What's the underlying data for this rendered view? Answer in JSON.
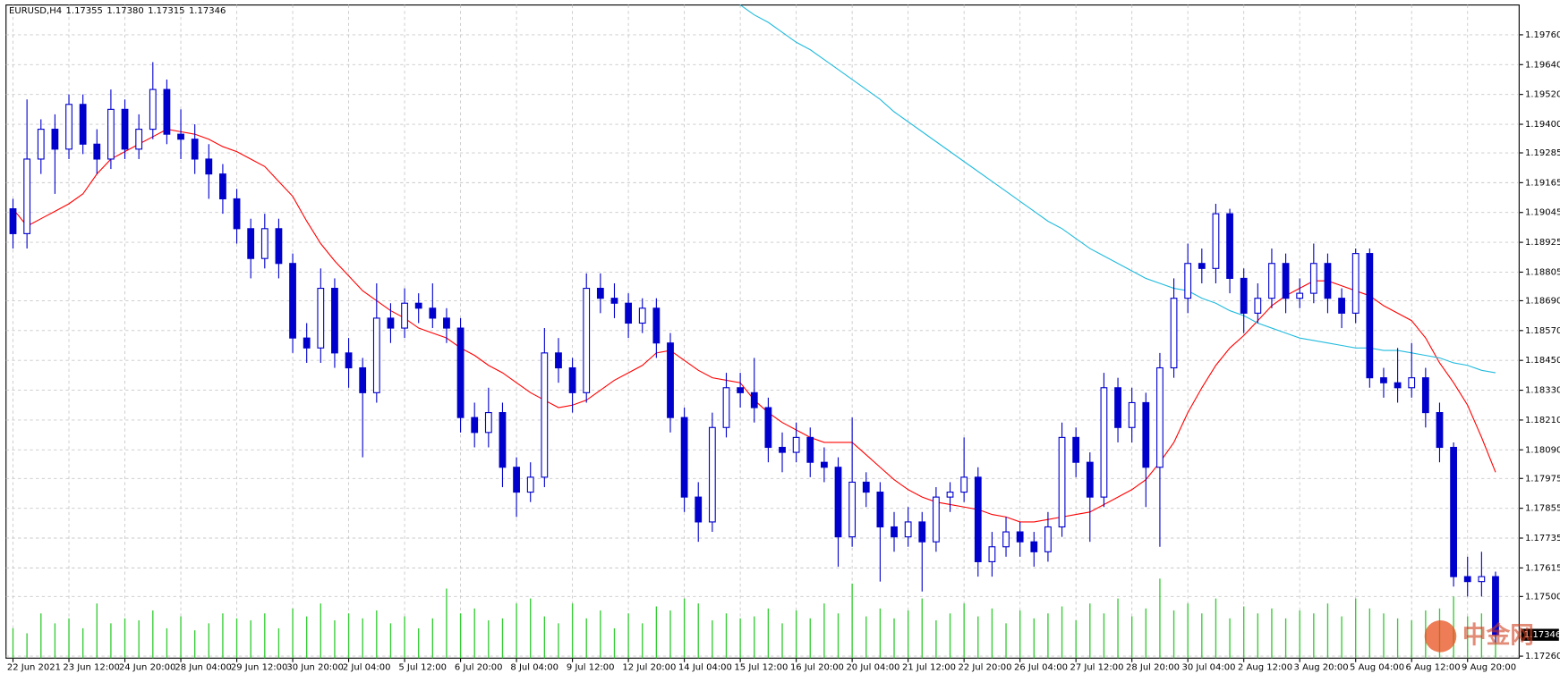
{
  "chart_data": {
    "type": "candlestick",
    "symbol": "EURUSD,H4",
    "ohlc_labels": [
      "1.17355",
      "1.17380",
      "1.17315",
      "1.17346"
    ],
    "up_color": "#ffffff",
    "down_color": "#0000cd",
    "outline_color": "#0000cd",
    "grid": true,
    "ylim": [
      1.17252,
      1.1988
    ],
    "yticks": [
      {
        "value": 1.1976,
        "label": "1.19760"
      },
      {
        "value": 1.1964,
        "label": "1.19640"
      },
      {
        "value": 1.1952,
        "label": "1.19520"
      },
      {
        "value": 1.194,
        "label": "1.19400"
      },
      {
        "value": 1.19285,
        "label": "1.19285"
      },
      {
        "value": 1.19165,
        "label": "1.19165"
      },
      {
        "value": 1.19045,
        "label": "1.19045"
      },
      {
        "value": 1.18925,
        "label": "1.18925"
      },
      {
        "value": 1.18805,
        "label": "1.18805"
      },
      {
        "value": 1.1869,
        "label": "1.18690"
      },
      {
        "value": 1.1857,
        "label": "1.18570"
      },
      {
        "value": 1.1845,
        "label": "1.18450"
      },
      {
        "value": 1.1833,
        "label": "1.18330"
      },
      {
        "value": 1.1821,
        "label": "1.18210"
      },
      {
        "value": 1.1809,
        "label": "1.18090"
      },
      {
        "value": 1.17975,
        "label": "1.17975"
      },
      {
        "value": 1.17855,
        "label": "1.17855"
      },
      {
        "value": 1.17735,
        "label": "1.17735"
      },
      {
        "value": 1.17615,
        "label": "1.17615"
      },
      {
        "value": 1.175,
        "label": "1.17500"
      },
      {
        "value": 1.1726,
        "label": "1.17260"
      }
    ],
    "xticks": [
      {
        "value": 0,
        "label": "22 Jun 2021"
      },
      {
        "value": 4,
        "label": "23 Jun 12:00"
      },
      {
        "value": 8,
        "label": "24 Jun 20:00"
      },
      {
        "value": 12,
        "label": "28 Jun 04:00"
      },
      {
        "value": 16,
        "label": "29 Jun 12:00"
      },
      {
        "value": 20,
        "label": "30 Jun 20:00"
      },
      {
        "value": 24,
        "label": "2 Jul 04:00"
      },
      {
        "value": 28,
        "label": "5 Jul 12:00"
      },
      {
        "value": 32,
        "label": "6 Jul 20:00"
      },
      {
        "value": 36,
        "label": "8 Jul 04:00"
      },
      {
        "value": 40,
        "label": "9 Jul 12:00"
      },
      {
        "value": 44,
        "label": "12 Jul 20:00"
      },
      {
        "value": 48,
        "label": "14 Jul 04:00"
      },
      {
        "value": 52,
        "label": "15 Jul 12:00"
      },
      {
        "value": 56,
        "label": "16 Jul 20:00"
      },
      {
        "value": 60,
        "label": "20 Jul 04:00"
      },
      {
        "value": 64,
        "label": "21 Jul 12:00"
      },
      {
        "value": 68,
        "label": "22 Jul 20:00"
      },
      {
        "value": 72,
        "label": "26 Jul 04:00"
      },
      {
        "value": 76,
        "label": "27 Jul 12:00"
      },
      {
        "value": 80,
        "label": "28 Jul 20:00"
      },
      {
        "value": 84,
        "label": "30 Jul 04:00"
      },
      {
        "value": 88,
        "label": "2 Aug 12:00"
      },
      {
        "value": 92,
        "label": "3 Aug 20:00"
      },
      {
        "value": 96,
        "label": "5 Aug 04:00"
      },
      {
        "value": 100,
        "label": "6 Aug 12:00"
      },
      {
        "value": 104,
        "label": "9 Aug 20:00"
      }
    ],
    "open": [
      1.1906,
      1.1896,
      1.1926,
      1.1938,
      1.193,
      1.1948,
      1.1932,
      1.1926,
      1.1946,
      1.193,
      1.1938,
      1.1954,
      1.1936,
      1.1934,
      1.1926,
      1.192,
      1.191,
      1.1898,
      1.1886,
      1.1898,
      1.1884,
      1.1854,
      1.185,
      1.1874,
      1.1848,
      1.1842,
      1.1832,
      1.1862,
      1.1858,
      1.1868,
      1.1866,
      1.1862,
      1.1858,
      1.1822,
      1.1816,
      1.1824,
      1.1802,
      1.1792,
      1.1798,
      1.1848,
      1.1842,
      1.1832,
      1.1874,
      1.187,
      1.1868,
      1.186,
      1.1866,
      1.1852,
      1.1822,
      1.179,
      1.178,
      1.1818,
      1.1834,
      1.1832,
      1.1826,
      1.181,
      1.1808,
      1.1814,
      1.1804,
      1.1802,
      1.1774,
      1.1796,
      1.1792,
      1.1778,
      1.1774,
      1.178,
      1.1772,
      1.179,
      1.1792,
      1.1798,
      1.1764,
      1.177,
      1.1776,
      1.1772,
      1.1768,
      1.1778,
      1.1814,
      1.1804,
      1.179,
      1.1834,
      1.1818,
      1.1828,
      1.1802,
      1.1842,
      1.187,
      1.1884,
      1.1882,
      1.1904,
      1.1878,
      1.1864,
      1.187,
      1.1884,
      1.187,
      1.1872,
      1.1884,
      1.187,
      1.1864,
      1.1888,
      1.1838,
      1.1836,
      1.1834,
      1.1838,
      1.1824,
      1.181,
      1.1758,
      1.1756,
      1.1758
    ],
    "high": [
      1.191,
      1.195,
      1.1942,
      1.1944,
      1.1952,
      1.1952,
      1.1938,
      1.1954,
      1.195,
      1.1944,
      1.1965,
      1.1958,
      1.1946,
      1.194,
      1.1932,
      1.1924,
      1.1914,
      1.1902,
      1.1904,
      1.1902,
      1.1888,
      1.186,
      1.1882,
      1.1878,
      1.1854,
      1.1846,
      1.1876,
      1.1868,
      1.1874,
      1.1872,
      1.1876,
      1.1866,
      1.1862,
      1.1828,
      1.1834,
      1.1828,
      1.1806,
      1.1804,
      1.1858,
      1.1854,
      1.1846,
      1.188,
      1.188,
      1.1876,
      1.1872,
      1.187,
      1.187,
      1.1856,
      1.1826,
      1.1796,
      1.1824,
      1.184,
      1.184,
      1.1846,
      1.183,
      1.1816,
      1.182,
      1.1818,
      1.181,
      1.1806,
      1.1822,
      1.18,
      1.1796,
      1.1784,
      1.1786,
      1.1784,
      1.1794,
      1.1796,
      1.1814,
      1.1802,
      1.1776,
      1.1782,
      1.178,
      1.1776,
      1.1784,
      1.182,
      1.1818,
      1.1808,
      1.184,
      1.1838,
      1.1834,
      1.1832,
      1.1848,
      1.1878,
      1.1892,
      1.189,
      1.1908,
      1.1906,
      1.1882,
      1.1876,
      1.189,
      1.1888,
      1.1878,
      1.1892,
      1.1888,
      1.1874,
      1.189,
      1.189,
      1.1842,
      1.185,
      1.1852,
      1.1842,
      1.1828,
      1.1812,
      1.1766,
      1.1768,
      1.176
    ],
    "low": [
      1.189,
      1.189,
      1.192,
      1.1912,
      1.1926,
      1.1928,
      1.192,
      1.1922,
      1.1926,
      1.1926,
      1.1934,
      1.1932,
      1.1926,
      1.192,
      1.191,
      1.1904,
      1.1892,
      1.1878,
      1.1882,
      1.1878,
      1.1848,
      1.1844,
      1.1844,
      1.1842,
      1.1834,
      1.1806,
      1.1828,
      1.1852,
      1.1854,
      1.186,
      1.1858,
      1.1852,
      1.1816,
      1.181,
      1.181,
      1.1794,
      1.1782,
      1.1788,
      1.1794,
      1.1836,
      1.1824,
      1.1828,
      1.1864,
      1.1862,
      1.1854,
      1.1856,
      1.1846,
      1.1816,
      1.1784,
      1.1772,
      1.1776,
      1.1814,
      1.1826,
      1.182,
      1.1804,
      1.18,
      1.1804,
      1.1798,
      1.1796,
      1.1762,
      1.177,
      1.1786,
      1.1756,
      1.1768,
      1.177,
      1.1752,
      1.1768,
      1.1784,
      1.1788,
      1.1758,
      1.1758,
      1.1766,
      1.1766,
      1.1762,
      1.1764,
      1.1774,
      1.1798,
      1.1772,
      1.1786,
      1.1812,
      1.1812,
      1.1786,
      1.177,
      1.1838,
      1.1864,
      1.1876,
      1.1876,
      1.1872,
      1.1856,
      1.186,
      1.1866,
      1.1864,
      1.1866,
      1.1868,
      1.1864,
      1.1858,
      1.186,
      1.1834,
      1.183,
      1.1828,
      1.183,
      1.1818,
      1.1804,
      1.1754,
      1.175,
      1.175,
      1.17315
    ],
    "close": [
      1.1896,
      1.1926,
      1.1938,
      1.193,
      1.1948,
      1.1932,
      1.1926,
      1.1946,
      1.193,
      1.1938,
      1.1954,
      1.1936,
      1.1934,
      1.1926,
      1.192,
      1.191,
      1.1898,
      1.1886,
      1.1898,
      1.1884,
      1.1854,
      1.185,
      1.1874,
      1.1848,
      1.1842,
      1.1832,
      1.1862,
      1.1858,
      1.1868,
      1.1866,
      1.1862,
      1.1858,
      1.1822,
      1.1816,
      1.1824,
      1.1802,
      1.1792,
      1.1798,
      1.1848,
      1.1842,
      1.1832,
      1.1874,
      1.187,
      1.1868,
      1.186,
      1.1866,
      1.1852,
      1.1822,
      1.179,
      1.178,
      1.1818,
      1.1834,
      1.1832,
      1.1826,
      1.181,
      1.1808,
      1.1814,
      1.1804,
      1.1802,
      1.1774,
      1.1796,
      1.1792,
      1.1778,
      1.1774,
      1.178,
      1.1772,
      1.179,
      1.1792,
      1.1798,
      1.1764,
      1.177,
      1.1776,
      1.1772,
      1.1768,
      1.1778,
      1.1814,
      1.1804,
      1.179,
      1.1834,
      1.1818,
      1.1828,
      1.1802,
      1.1842,
      1.187,
      1.1884,
      1.1882,
      1.1904,
      1.1878,
      1.1864,
      1.187,
      1.1884,
      1.187,
      1.1872,
      1.1884,
      1.187,
      1.1864,
      1.1888,
      1.1838,
      1.1836,
      1.1834,
      1.1838,
      1.1824,
      1.181,
      1.1758,
      1.1756,
      1.1758,
      1.17346
    ],
    "overlays": [
      {
        "color": "#ff0000",
        "values": [
          1.1906,
          1.1899,
          1.1902,
          1.1905,
          1.1908,
          1.1912,
          1.192,
          1.1926,
          1.1929,
          1.1932,
          1.1935,
          1.1938,
          1.1937,
          1.1936,
          1.1934,
          1.1931,
          1.1929,
          1.1926,
          1.1923,
          1.1917,
          1.1911,
          1.1901,
          1.1892,
          1.1885,
          1.1879,
          1.1873,
          1.1869,
          1.1865,
          1.1862,
          1.1858,
          1.1856,
          1.1854,
          1.185,
          1.1847,
          1.1843,
          1.184,
          1.1836,
          1.1832,
          1.1829,
          1.1826,
          1.1827,
          1.1829,
          1.1833,
          1.1837,
          1.184,
          1.1843,
          1.1848,
          1.1849,
          1.1845,
          1.1841,
          1.1838,
          1.1837,
          1.1836,
          1.1829,
          1.1824,
          1.182,
          1.1817,
          1.1814,
          1.1812,
          1.1812,
          1.1812,
          1.1807,
          1.1802,
          1.1797,
          1.1793,
          1.179,
          1.1788,
          1.1787,
          1.1786,
          1.1785,
          1.1783,
          1.1782,
          1.178,
          1.178,
          1.1781,
          1.1782,
          1.1783,
          1.1784,
          1.1787,
          1.179,
          1.1793,
          1.1797,
          1.1804,
          1.1812,
          1.1824,
          1.1834,
          1.1843,
          1.185,
          1.1855,
          1.1861,
          1.1867,
          1.1871,
          1.1874,
          1.1877,
          1.1877,
          1.1875,
          1.1873,
          1.1871,
          1.1867,
          1.1864,
          1.1861,
          1.1854,
          1.1844,
          1.1836,
          1.1827,
          1.1814,
          1.18
        ]
      },
      {
        "color": "#22bbdd",
        "values": [
          null,
          null,
          null,
          null,
          null,
          null,
          null,
          null,
          null,
          null,
          null,
          null,
          null,
          null,
          null,
          null,
          null,
          null,
          null,
          null,
          null,
          null,
          null,
          null,
          null,
          null,
          null,
          null,
          null,
          null,
          null,
          null,
          null,
          null,
          null,
          null,
          null,
          null,
          null,
          null,
          null,
          null,
          null,
          null,
          null,
          null,
          null,
          null,
          null,
          null,
          null,
          null,
          1.1988,
          1.1984,
          1.1981,
          1.1977,
          1.1973,
          1.197,
          1.1966,
          1.1962,
          1.1958,
          1.1954,
          1.195,
          1.1945,
          1.1941,
          1.1937,
          1.1933,
          1.1929,
          1.1925,
          1.1921,
          1.1917,
          1.1913,
          1.1909,
          1.1905,
          1.1901,
          1.1898,
          1.1894,
          1.189,
          1.1887,
          1.1884,
          1.1881,
          1.1878,
          1.1876,
          1.1874,
          1.1873,
          1.187,
          1.1868,
          1.1865,
          1.1863,
          1.186,
          1.1858,
          1.1856,
          1.1854,
          1.1853,
          1.1852,
          1.1851,
          1.185,
          1.185,
          1.1849,
          1.1849,
          1.1848,
          1.1847,
          1.1846,
          1.1844,
          1.1843,
          1.1841,
          1.184
        ]
      }
    ],
    "volume": {
      "color": "#33cc33",
      "y2lim": [
        0,
        100
      ],
      "values": [
        30,
        25,
        45,
        35,
        40,
        30,
        55,
        35,
        40,
        38,
        48,
        30,
        42,
        28,
        35,
        45,
        40,
        38,
        45,
        30,
        50,
        42,
        55,
        38,
        45,
        40,
        48,
        35,
        42,
        30,
        40,
        70,
        45,
        50,
        38,
        40,
        55,
        60,
        42,
        35,
        55,
        40,
        48,
        30,
        45,
        35,
        52,
        48,
        60,
        55,
        38,
        45,
        40,
        42,
        50,
        35,
        48,
        40,
        55,
        45,
        75,
        42,
        50,
        40,
        48,
        60,
        38,
        45,
        55,
        42,
        50,
        35,
        48,
        40,
        45,
        52,
        38,
        55,
        45,
        60,
        42,
        50,
        80,
        48,
        55,
        45,
        60,
        40,
        52,
        45,
        50,
        40,
        48,
        45,
        55,
        42,
        60,
        50,
        45,
        40,
        38,
        48,
        50,
        62,
        42,
        45,
        30
      ]
    },
    "watermark": "中金网"
  }
}
